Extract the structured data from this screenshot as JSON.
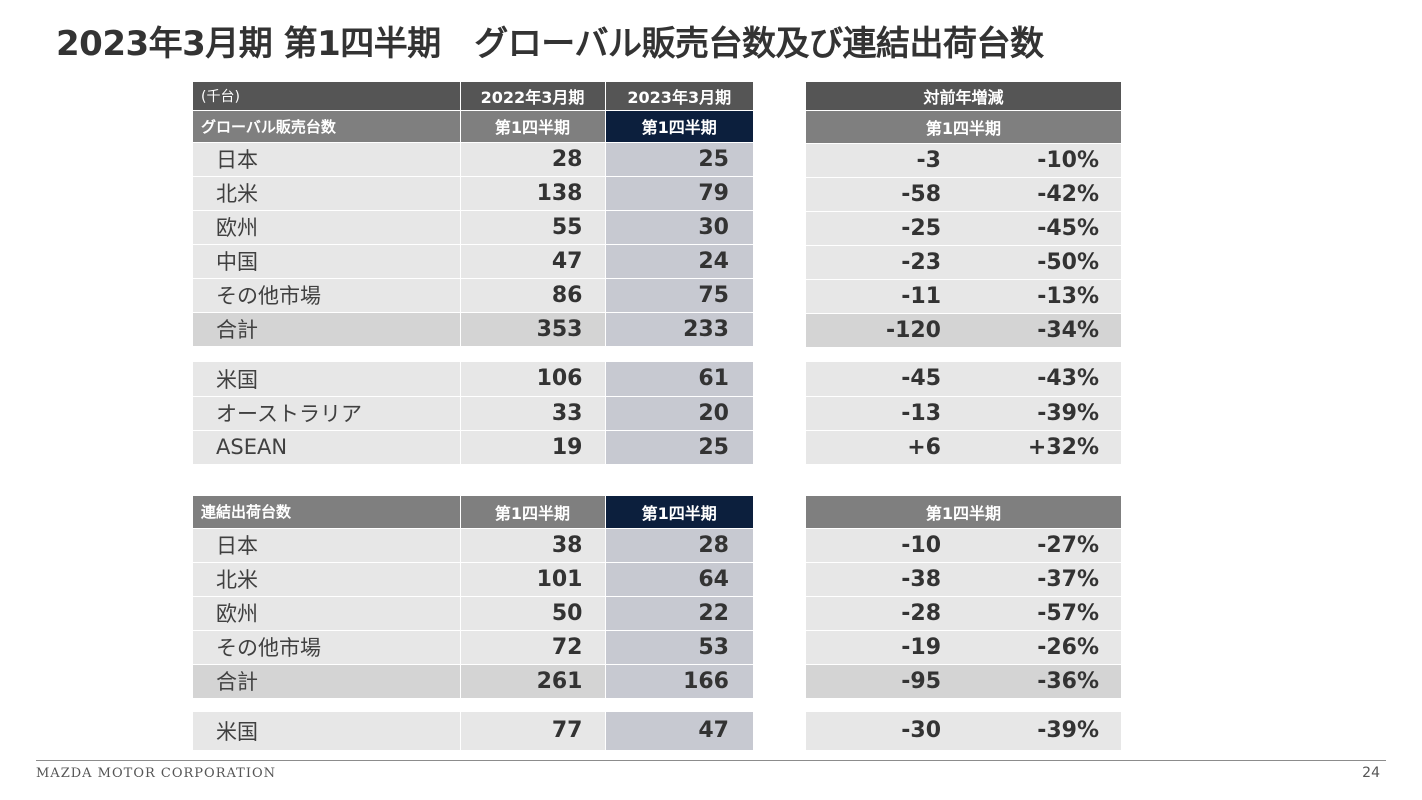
{
  "title": "2023年3月期 第1四半期　グローバル販売台数及び連結出荷台数",
  "unit": "(千台)",
  "col_fy_prev": "2022年3月期",
  "col_fy_curr": "2023年3月期",
  "quarter": "第1四半期",
  "yoy_header": "対前年増減",
  "global_sales": {
    "label": "グローバル販売台数",
    "rows": [
      {
        "name": "日本",
        "prev": "28",
        "curr": "25",
        "diff": "-3",
        "pct": "-10%"
      },
      {
        "name": "北米",
        "prev": "138",
        "curr": "79",
        "diff": "-58",
        "pct": "-42%"
      },
      {
        "name": "欧州",
        "prev": "55",
        "curr": "30",
        "diff": "-25",
        "pct": "-45%"
      },
      {
        "name": "中国",
        "prev": "47",
        "curr": "24",
        "diff": "-23",
        "pct": "-50%"
      },
      {
        "name": "その他市場",
        "prev": "86",
        "curr": "75",
        "diff": "-11",
        "pct": "-13%"
      },
      {
        "name": "合計",
        "prev": "353",
        "curr": "233",
        "diff": "-120",
        "pct": "-34%"
      }
    ],
    "extra_rows": [
      {
        "name": "米国",
        "prev": "106",
        "curr": "61",
        "diff": "-45",
        "pct": "-43%"
      },
      {
        "name": "オーストラリア",
        "prev": "33",
        "curr": "20",
        "diff": "-13",
        "pct": "-39%"
      },
      {
        "name": "ASEAN",
        "prev": "19",
        "curr": "25",
        "diff": "+6",
        "pct": "+32%"
      }
    ]
  },
  "consolidated": {
    "label": "連結出荷台数",
    "rows": [
      {
        "name": "日本",
        "prev": "38",
        "curr": "28",
        "diff": "-10",
        "pct": "-27%"
      },
      {
        "name": "北米",
        "prev": "101",
        "curr": "64",
        "diff": "-38",
        "pct": "-37%"
      },
      {
        "name": "欧州",
        "prev": "50",
        "curr": "22",
        "diff": "-28",
        "pct": "-57%"
      },
      {
        "name": "その他市場",
        "prev": "72",
        "curr": "53",
        "diff": "-19",
        "pct": "-26%"
      },
      {
        "name": "合計",
        "prev": "261",
        "curr": "166",
        "diff": "-95",
        "pct": "-36%"
      }
    ],
    "extra_rows": [
      {
        "name": "米国",
        "prev": "77",
        "curr": "47",
        "diff": "-30",
        "pct": "-39%"
      }
    ]
  },
  "footer": {
    "company": "MAZDA MOTOR CORPORATION",
    "page": "24"
  }
}
